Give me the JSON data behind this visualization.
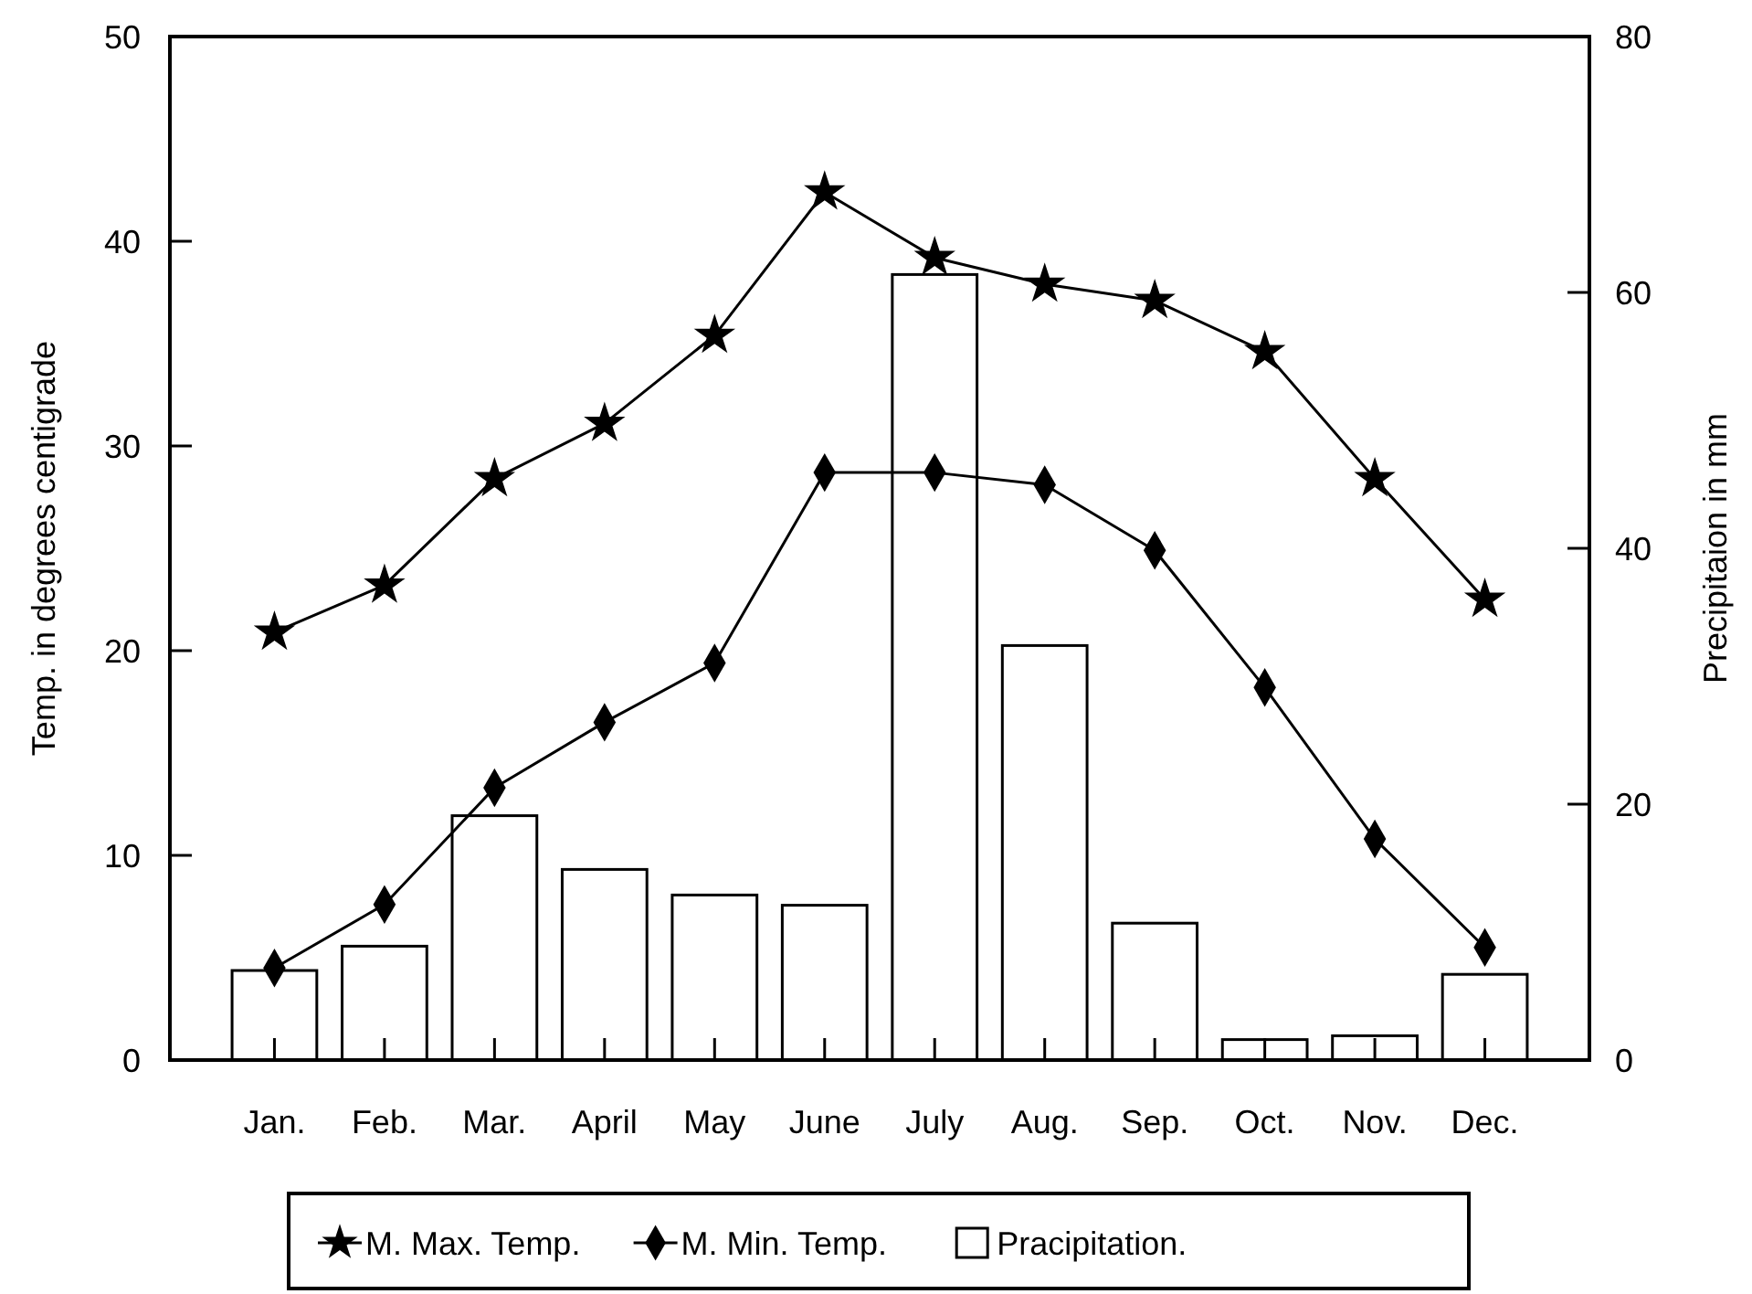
{
  "chart_data": {
    "type": "line",
    "categories": [
      "Jan.",
      "Feb.",
      "Mar.",
      "April",
      "May",
      "June",
      "July",
      "Aug.",
      "Sep.",
      "Oct.",
      "Nov.",
      "Dec."
    ],
    "series": [
      {
        "name": "M. Max. Temp.",
        "color": "#000000",
        "marker": "star",
        "values": [
          20.9,
          23.2,
          28.4,
          31.1,
          35.4,
          42.4,
          39.2,
          37.9,
          37.1,
          34.6,
          28.4,
          22.5
        ]
      },
      {
        "name": "M. Min. Temp.",
        "color": "#000000",
        "marker": "diamond",
        "values": [
          4.5,
          7.6,
          13.3,
          16.5,
          19.4,
          28.7,
          28.7,
          28.1,
          24.9,
          18.2,
          10.8,
          5.5
        ]
      },
      {
        "name": "Pracipitation.",
        "type": "bar",
        "axis": "y2",
        "color": "#ffffff",
        "values": [
          7.0,
          8.9,
          19.1,
          14.9,
          12.9,
          12.1,
          61.4,
          32.4,
          10.7,
          1.6,
          1.9,
          6.7
        ]
      }
    ],
    "ylabel": "Temp. in degrees centigrade",
    "y2label": "Precipitaion in mm",
    "ylim": [
      0,
      50
    ],
    "yticks": [
      0,
      10,
      20,
      30,
      40,
      50
    ],
    "y2lim": [
      0,
      80
    ],
    "y2ticks": [
      0,
      20,
      40,
      60,
      80
    ],
    "legend": "bottom",
    "grid": false
  }
}
